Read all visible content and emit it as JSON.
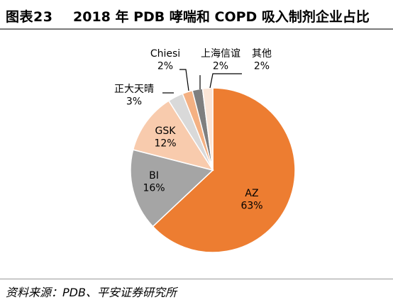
{
  "header": {
    "figure_label": "图表23",
    "title": "2018 年 PDB 哮喘和 COPD 吸入制剂企业占比"
  },
  "source": "资料来源：PDB、平安证券研究所",
  "chart_data": {
    "type": "pie",
    "title": "2018 年 PDB 哮喘和 COPD 吸入制剂企业占比",
    "slices": [
      {
        "label": "AZ",
        "value": 63,
        "value_label": "63%",
        "color": "#ED7D31"
      },
      {
        "label": "BI",
        "value": 16,
        "value_label": "16%",
        "color": "#A5A5A5"
      },
      {
        "label": "GSK",
        "value": 12,
        "value_label": "12%",
        "color": "#F8CBAD"
      },
      {
        "label": "正大天晴",
        "value": 3,
        "value_label": "3%",
        "color": "#D9D9D9"
      },
      {
        "label": "Chiesi",
        "value": 2,
        "value_label": "2%",
        "color": "#F4B183"
      },
      {
        "label": "上海信谊",
        "value": 2,
        "value_label": "2%",
        "color": "#7F7F7F"
      },
      {
        "label": "其他",
        "value": 2,
        "value_label": "2%",
        "color": "#FBE5D6"
      }
    ]
  }
}
